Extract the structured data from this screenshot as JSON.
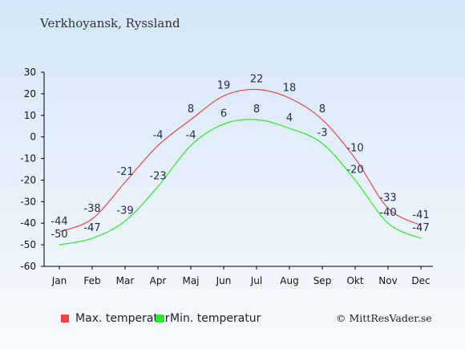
{
  "chart_data": {
    "type": "line",
    "title": "Verkhoyansk, Ryssland",
    "categories": [
      "Jan",
      "Feb",
      "Mar",
      "Apr",
      "Maj",
      "Jun",
      "Jul",
      "Aug",
      "Sep",
      "Okt",
      "Nov",
      "Dec"
    ],
    "yticks": [
      30,
      20,
      10,
      0,
      -10,
      -20,
      -30,
      -40,
      -50,
      -60
    ],
    "ylim": [
      -60,
      30
    ],
    "grid": false,
    "legend_position": "bottom",
    "series": [
      {
        "name": "Max. temperatur",
        "color": "#e8474a",
        "values": [
          -44,
          -38,
          -21,
          -4,
          8,
          19,
          22,
          18,
          8,
          -10,
          -33,
          -41
        ]
      },
      {
        "name": "Min. temperatur",
        "color": "#2ee82e",
        "values": [
          -50,
          -47,
          -39,
          -23,
          -4,
          6,
          8,
          4,
          -3,
          -20,
          -40,
          -47
        ]
      }
    ]
  },
  "credit": "© MittResVader.se"
}
